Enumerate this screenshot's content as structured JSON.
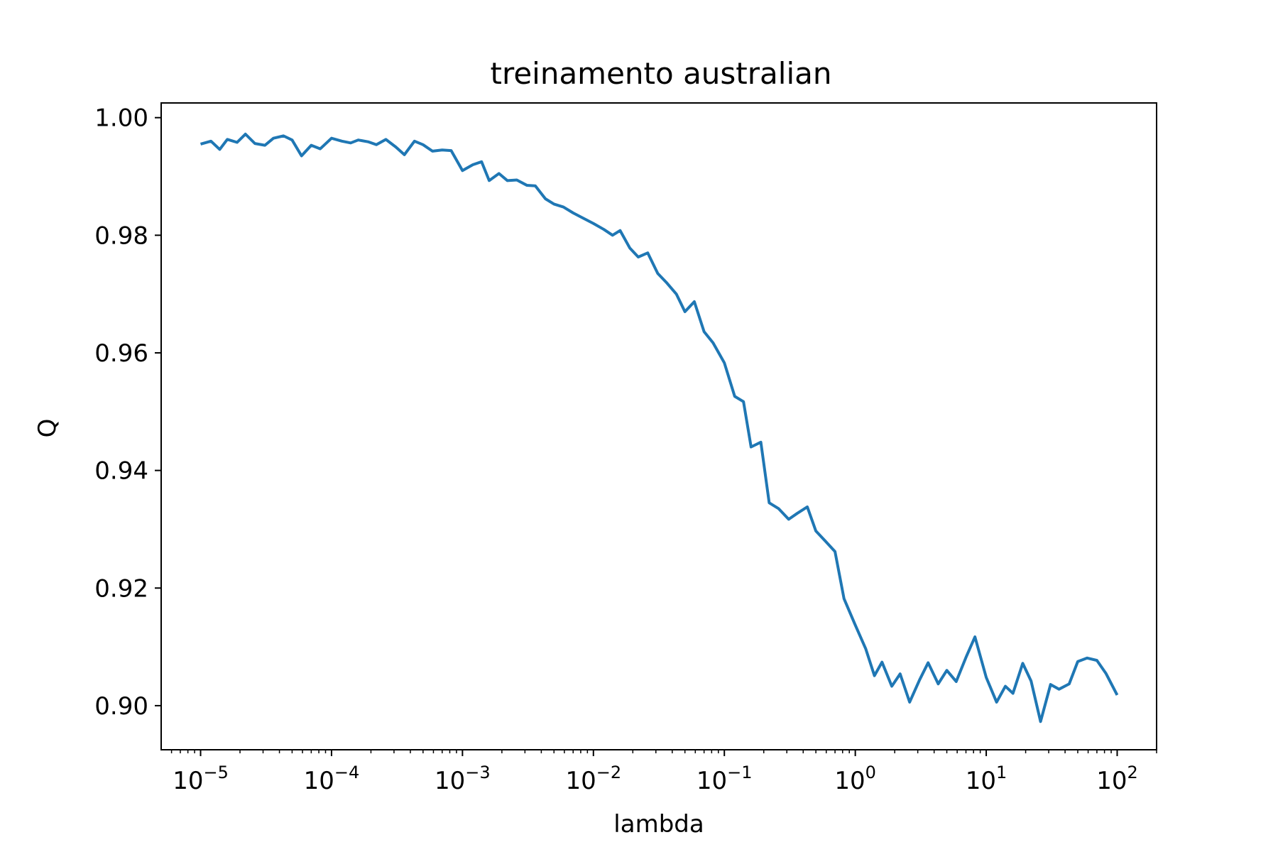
{
  "chart_data": {
    "type": "line",
    "title": "treinamento australian",
    "xlabel": "lambda",
    "ylabel": "Q",
    "xscale": "log",
    "xlim": [
      5e-06,
      200
    ],
    "ylim": [
      0.8925,
      1.0025
    ],
    "grid": false,
    "x_ticks": [
      {
        "value": 1e-05,
        "base": "10",
        "exp": "−5"
      },
      {
        "value": 0.0001,
        "base": "10",
        "exp": "−4"
      },
      {
        "value": 0.001,
        "base": "10",
        "exp": "−3"
      },
      {
        "value": 0.01,
        "base": "10",
        "exp": "−2"
      },
      {
        "value": 0.1,
        "base": "10",
        "exp": "−1"
      },
      {
        "value": 1,
        "base": "10",
        "exp": "0"
      },
      {
        "value": 10,
        "base": "10",
        "exp": "1"
      },
      {
        "value": 100,
        "base": "10",
        "exp": "2"
      }
    ],
    "y_ticks": [
      {
        "value": 0.9,
        "label": "0.90"
      },
      {
        "value": 0.92,
        "label": "0.92"
      },
      {
        "value": 0.94,
        "label": "0.94"
      },
      {
        "value": 0.96,
        "label": "0.96"
      },
      {
        "value": 0.98,
        "label": "0.98"
      },
      {
        "value": 1.0,
        "label": "1.00"
      }
    ],
    "series": [
      {
        "color": "#1f77b4",
        "x": [
          1e-05,
          1.2e-05,
          1.4e-05,
          1.6e-05,
          1.9e-05,
          2.2e-05,
          2.6e-05,
          3.1e-05,
          3.6e-05,
          4.3e-05,
          5e-05,
          5.9e-05,
          7e-05,
          8.2e-05,
          0.0001,
          0.00012,
          0.00014,
          0.00016,
          0.00019,
          0.00022,
          0.00026,
          0.00031,
          0.00036,
          0.00043,
          0.0005,
          0.00059,
          0.0007,
          0.00082,
          0.001,
          0.0012,
          0.0014,
          0.0016,
          0.0019,
          0.0022,
          0.0026,
          0.0031,
          0.0036,
          0.0043,
          0.005,
          0.0059,
          0.007,
          0.0082,
          0.01,
          0.012,
          0.014,
          0.016,
          0.019,
          0.022,
          0.026,
          0.031,
          0.036,
          0.043,
          0.05,
          0.059,
          0.07,
          0.082,
          0.1,
          0.12,
          0.14,
          0.16,
          0.19,
          0.22,
          0.26,
          0.31,
          0.36,
          0.43,
          0.5,
          0.59,
          0.7,
          0.82,
          1.0,
          1.2,
          1.4,
          1.6,
          1.9,
          2.2,
          2.6,
          3.1,
          3.6,
          4.3,
          5.0,
          5.9,
          7.0,
          8.2,
          10,
          12,
          14,
          16,
          19,
          22,
          26,
          31,
          36,
          43,
          50,
          59,
          70,
          82,
          100
        ],
        "y": [
          0.9955,
          0.996,
          0.9946,
          0.9963,
          0.9958,
          0.9972,
          0.9956,
          0.9953,
          0.9965,
          0.9969,
          0.9962,
          0.9935,
          0.9953,
          0.9947,
          0.9965,
          0.996,
          0.9957,
          0.9962,
          0.9959,
          0.9954,
          0.9963,
          0.995,
          0.9937,
          0.996,
          0.9954,
          0.9943,
          0.9945,
          0.9944,
          0.991,
          0.992,
          0.9925,
          0.9893,
          0.9905,
          0.9893,
          0.9894,
          0.9885,
          0.9884,
          0.9862,
          0.9853,
          0.9848,
          0.9838,
          0.983,
          0.982,
          0.981,
          0.98,
          0.9808,
          0.9778,
          0.9763,
          0.977,
          0.9735,
          0.972,
          0.97,
          0.967,
          0.9687,
          0.9636,
          0.9617,
          0.9583,
          0.9526,
          0.9517,
          0.944,
          0.9448,
          0.9345,
          0.9335,
          0.9317,
          0.9327,
          0.9338,
          0.9297,
          0.928,
          0.9262,
          0.9182,
          0.9137,
          0.9097,
          0.9051,
          0.9074,
          0.9033,
          0.9054,
          0.9006,
          0.9044,
          0.9073,
          0.9037,
          0.906,
          0.9041,
          0.9082,
          0.9117,
          0.9048,
          0.9006,
          0.9033,
          0.9021,
          0.9072,
          0.9042,
          0.8973,
          0.9036,
          0.9028,
          0.9037,
          0.9075,
          0.9081,
          0.9077,
          0.9055,
          0.9018
        ]
      }
    ]
  }
}
